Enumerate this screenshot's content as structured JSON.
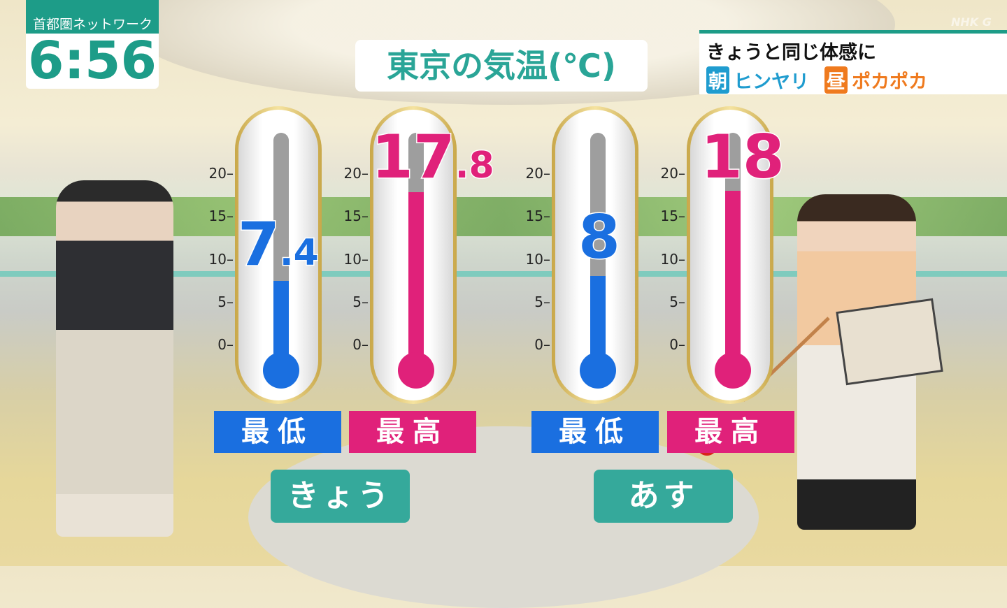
{
  "clock": {
    "program": "首都圏ネットワーク",
    "time": "6:56"
  },
  "logo": "NHK G",
  "title": "東京の気温(℃)",
  "info": {
    "line1": "きょうと同じ体感に",
    "morning_tag": "朝",
    "morning_text": "ヒンヤリ",
    "noon_tag": "昼",
    "noon_text": "ポカポカ",
    "morning_color": "#1f9ccf",
    "noon_color": "#ef7a1e"
  },
  "colors": {
    "low": "#1a6fe0",
    "high": "#e0217a",
    "teal": "#35a99b"
  },
  "chart_data": {
    "type": "bar",
    "title": "東京の気温(℃)",
    "ylim": [
      0,
      20
    ],
    "yticks": [
      0,
      5,
      10,
      15,
      20
    ],
    "categories": [
      "きょう",
      "あす"
    ],
    "series": [
      {
        "name": "最低",
        "values": [
          7.4,
          8
        ]
      },
      {
        "name": "最高",
        "values": [
          17.8,
          18
        ]
      }
    ],
    "labels": [
      {
        "int": "7",
        "dec": ".4"
      },
      {
        "int": "17",
        "dec": ".8"
      },
      {
        "int": "8",
        "dec": ""
      },
      {
        "int": "18",
        "dec": ""
      }
    ]
  },
  "labels": {
    "low": "最低",
    "high": "最高",
    "today": "きょう",
    "tomorrow": "あす"
  }
}
